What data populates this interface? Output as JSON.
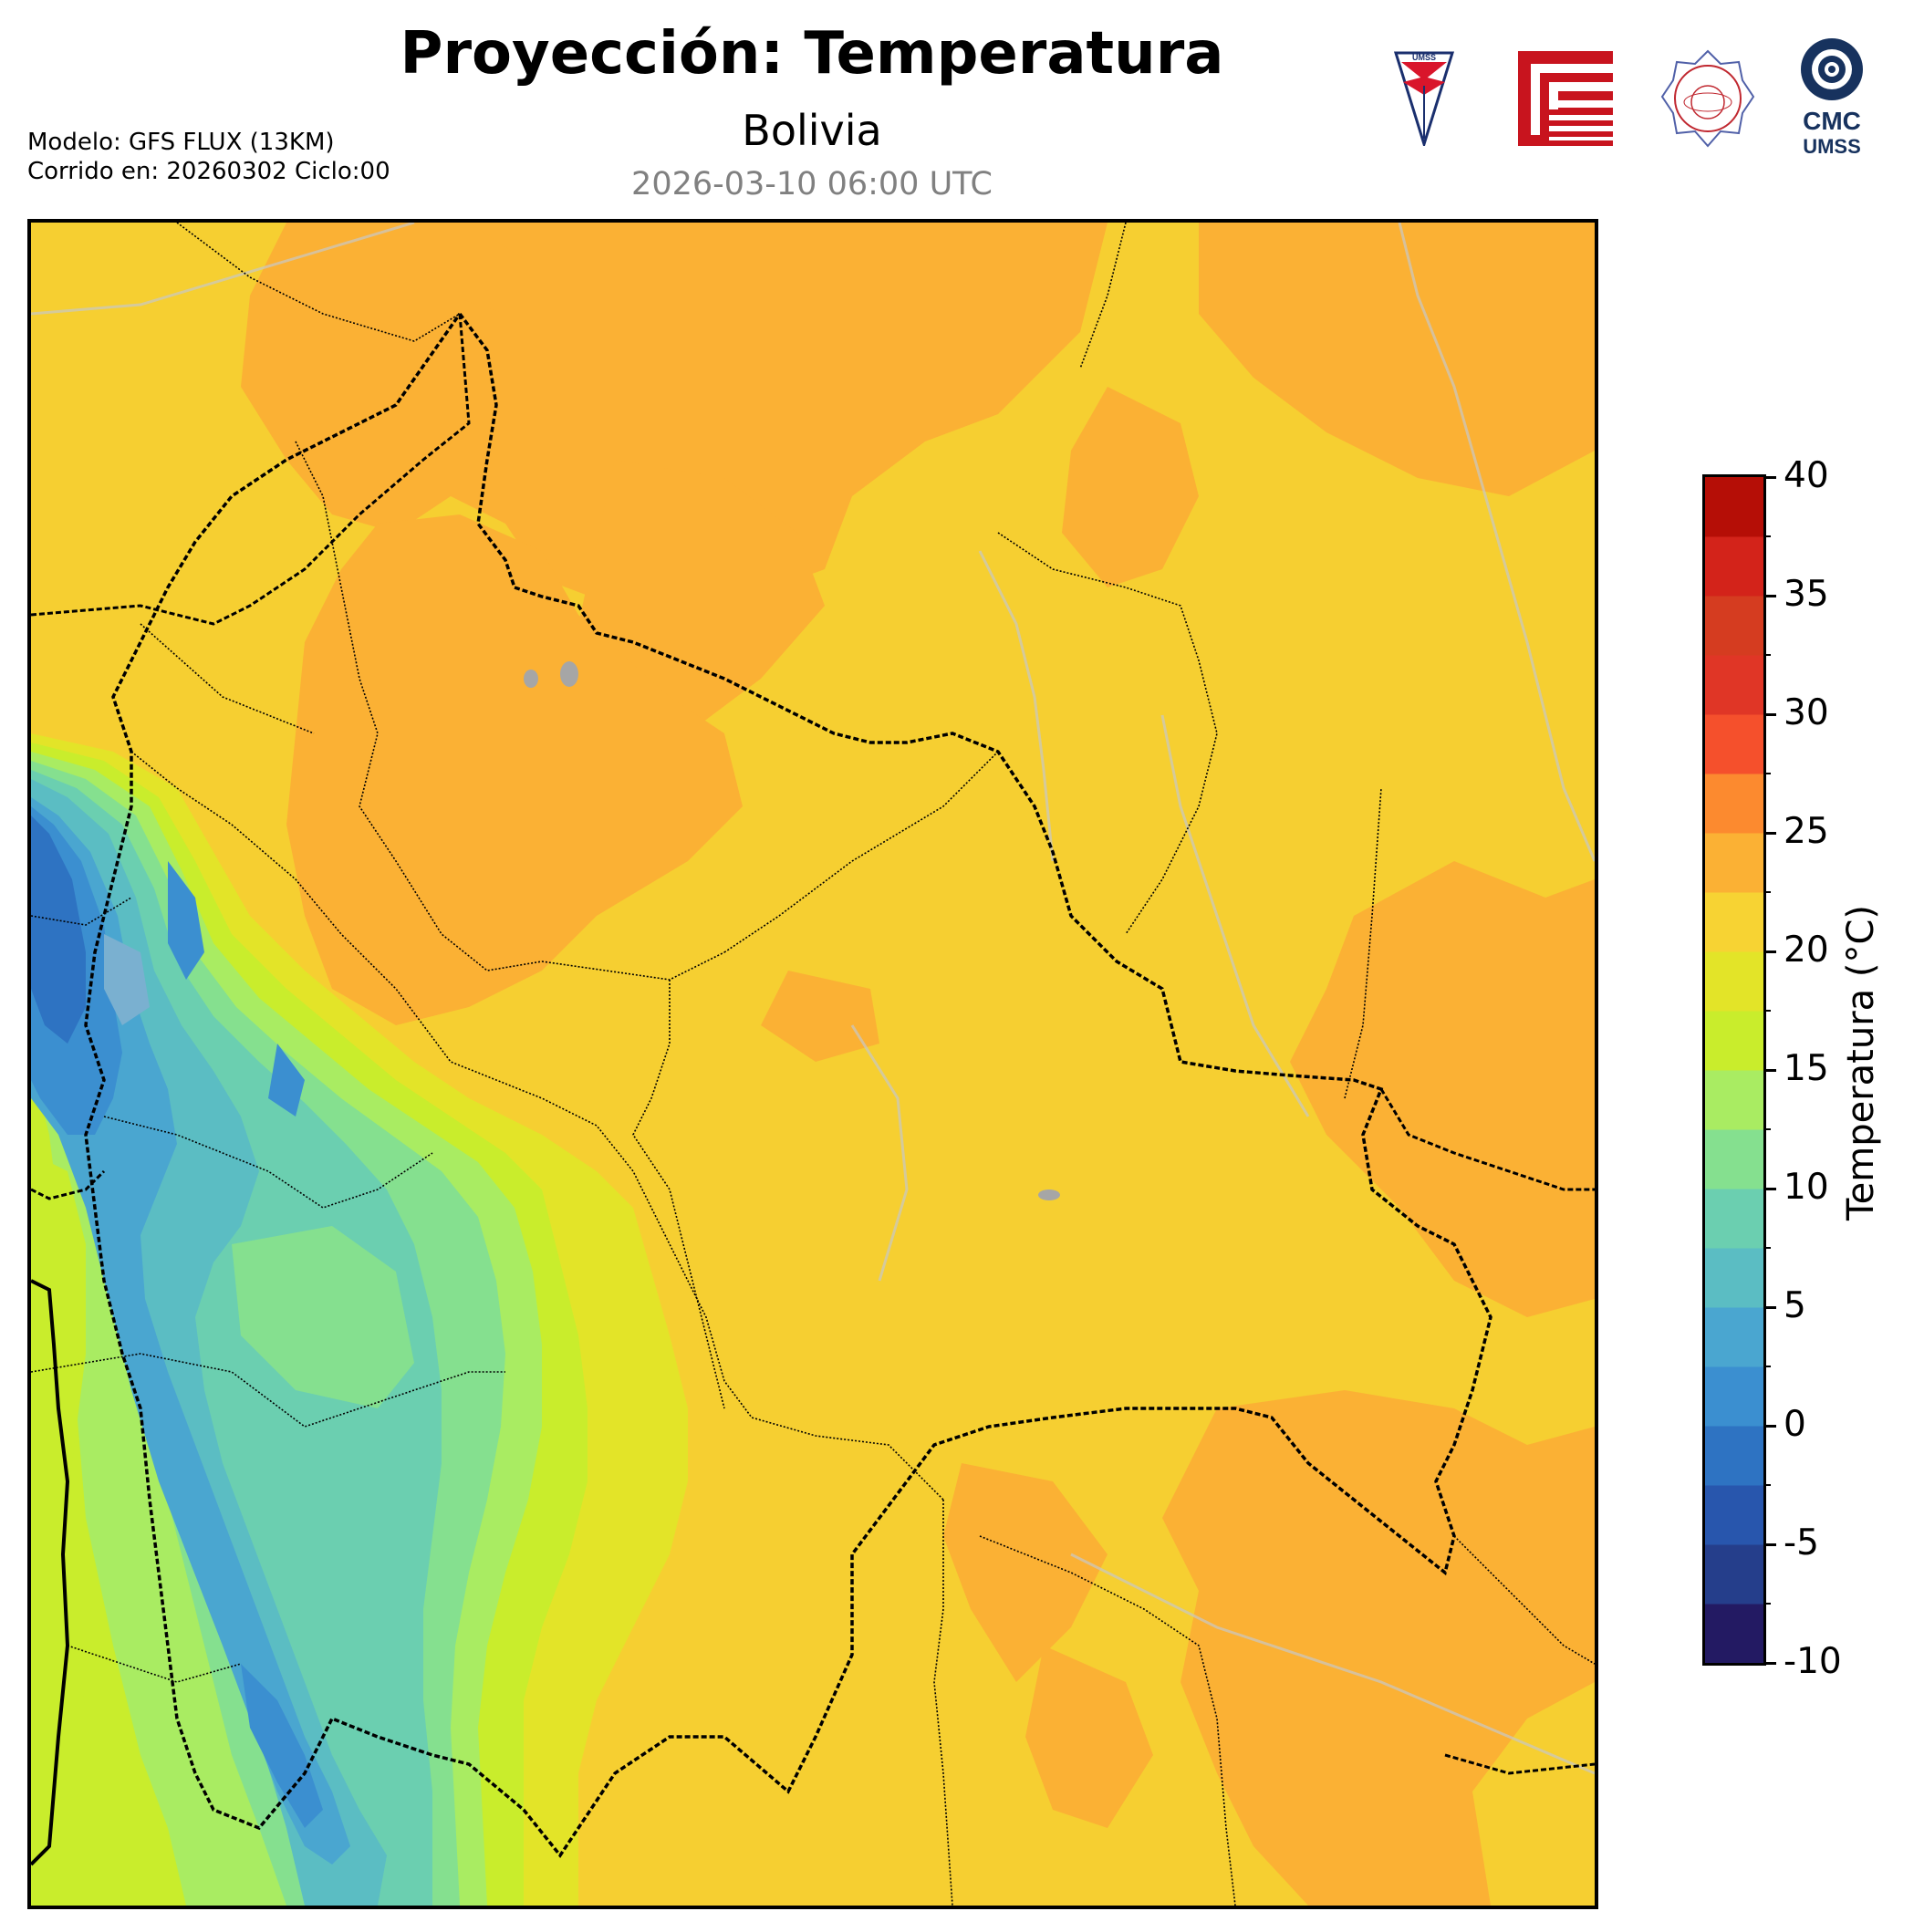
{
  "header": {
    "title": "Proyección: Temperatura",
    "subtitle": "Bolivia",
    "datetime": "2026-03-10 06:00 UTC",
    "model_line": "Modelo: GFS FLUX (13KM)",
    "run_line": "Corrido en: 20260302 Ciclo:00"
  },
  "logos": {
    "umss_text": "UMSS",
    "cmc_line1": "CMC",
    "cmc_line2": "UMSS"
  },
  "colorbar": {
    "title": "Temperatura (°C)",
    "min": -10,
    "max": 40,
    "tick_labels": [
      "40",
      "35",
      "30",
      "25",
      "20",
      "15",
      "10",
      "5",
      "0",
      "-5",
      "-10"
    ],
    "colors": [
      "#231a63",
      "#253e8b",
      "#2856ad",
      "#2e73c2",
      "#3b8fd0",
      "#4aa6d0",
      "#5bbdc3",
      "#6bcfb0",
      "#85e08f",
      "#a9ec62",
      "#c9ed2c",
      "#e3e428",
      "#f7d333",
      "#fbb134",
      "#fc8a2f",
      "#f5502c",
      "#e03626",
      "#d53c20",
      "#d3231a",
      "#b50e06"
    ]
  },
  "colors": {
    "map_base": "#f6cf31",
    "warm": "#fbb134",
    "lake": "#a6a6a6",
    "border": "#000000"
  }
}
